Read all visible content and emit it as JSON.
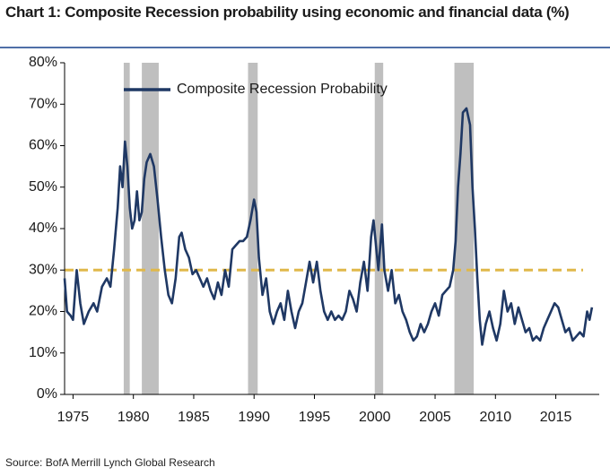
{
  "chart_data": {
    "type": "line",
    "title": "Chart 1: Composite Recession probability using economic and financial data (%)",
    "source": "Source:  BofA Merrill Lynch Global Research",
    "x": [
      1974.3,
      1974.5,
      1974.8,
      1975.0,
      1975.3,
      1975.6,
      1975.9,
      1976.3,
      1976.7,
      1977.0,
      1977.4,
      1977.8,
      1978.1,
      1978.4,
      1978.7,
      1978.9,
      1979.1,
      1979.3,
      1979.5,
      1979.7,
      1979.9,
      1980.1,
      1980.3,
      1980.5,
      1980.7,
      1980.9,
      1981.1,
      1981.4,
      1981.7,
      1982.0,
      1982.3,
      1982.6,
      1982.9,
      1983.2,
      1983.5,
      1983.8,
      1984.0,
      1984.3,
      1984.6,
      1984.9,
      1985.2,
      1985.5,
      1985.8,
      1986.1,
      1986.4,
      1986.7,
      1987.0,
      1987.3,
      1987.6,
      1987.9,
      1988.2,
      1988.5,
      1988.8,
      1989.1,
      1989.4,
      1989.7,
      1990.0,
      1990.2,
      1990.4,
      1990.7,
      1991.0,
      1991.3,
      1991.6,
      1991.9,
      1992.2,
      1992.5,
      1992.8,
      1993.1,
      1993.4,
      1993.7,
      1994.0,
      1994.3,
      1994.6,
      1994.9,
      1995.2,
      1995.5,
      1995.8,
      1996.1,
      1996.4,
      1996.7,
      1997.0,
      1997.3,
      1997.6,
      1997.9,
      1998.2,
      1998.5,
      1998.8,
      1999.1,
      1999.4,
      1999.7,
      1999.9,
      2000.1,
      2000.3,
      2000.6,
      2000.8,
      2001.1,
      2001.4,
      2001.7,
      2002.0,
      2002.3,
      2002.6,
      2002.9,
      2003.2,
      2003.5,
      2003.8,
      2004.1,
      2004.4,
      2004.7,
      2005.0,
      2005.3,
      2005.6,
      2005.9,
      2006.2,
      2006.5,
      2006.7,
      2006.9,
      2007.1,
      2007.3,
      2007.6,
      2007.9,
      2008.1,
      2008.3,
      2008.5,
      2008.7,
      2008.9,
      2009.2,
      2009.5,
      2009.8,
      2010.1,
      2010.4,
      2010.7,
      2011.0,
      2011.3,
      2011.6,
      2011.9,
      2012.2,
      2012.5,
      2012.8,
      2013.1,
      2013.4,
      2013.7,
      2014.0,
      2014.3,
      2014.6,
      2014.9,
      2015.2,
      2015.5,
      2015.8,
      2016.1,
      2016.4,
      2016.7,
      2017.0,
      2017.3,
      2017.6,
      2017.8,
      2018.0
    ],
    "series": [
      {
        "name": "Composite Recession Probability",
        "color": "#1f3864",
        "values": [
          28,
          20,
          19,
          18,
          30,
          22,
          17,
          20,
          22,
          20,
          26,
          28,
          26,
          35,
          45,
          55,
          50,
          61,
          55,
          45,
          40,
          42,
          49,
          42,
          44,
          52,
          56,
          58,
          55,
          47,
          38,
          30,
          24,
          22,
          28,
          38,
          39,
          35,
          33,
          29,
          30,
          28,
          26,
          28,
          25,
          23,
          27,
          24,
          30,
          26,
          35,
          36,
          37,
          37,
          38,
          42,
          47,
          44,
          33,
          24,
          28,
          20,
          17,
          20,
          22,
          18,
          25,
          20,
          16,
          20,
          22,
          27,
          32,
          27,
          32,
          25,
          20,
          18,
          20,
          18,
          19,
          18,
          20,
          25,
          23,
          20,
          27,
          32,
          25,
          38,
          42,
          36,
          30,
          41,
          30,
          25,
          30,
          22,
          24,
          20,
          18,
          15,
          13,
          14,
          17,
          15,
          17,
          20,
          22,
          19,
          24,
          25,
          26,
          30,
          37,
          50,
          58,
          68,
          69,
          65,
          50,
          40,
          28,
          18,
          12,
          17,
          20,
          16,
          13,
          17,
          25,
          20,
          22,
          17,
          21,
          18,
          15,
          16,
          13,
          14,
          13,
          16,
          18,
          20,
          22,
          21,
          18,
          15,
          16,
          13,
          14,
          15,
          14,
          20,
          18,
          21
        ]
      }
    ],
    "recession_periods": [
      [
        1979.2,
        1979.7
      ],
      [
        1980.7,
        1982.1
      ],
      [
        1989.5,
        1990.3
      ],
      [
        2000.0,
        2000.7
      ],
      [
        2006.6,
        2008.2
      ]
    ],
    "threshold": 30,
    "xlim": [
      1974.3,
      2018.6
    ],
    "xticks": [
      1975,
      1980,
      1985,
      1990,
      1995,
      2000,
      2005,
      2010,
      2015
    ],
    "ylim": [
      0,
      80
    ],
    "yticks": [
      {
        "value": 0,
        "label": "0%"
      },
      {
        "value": 10,
        "label": "10%"
      },
      {
        "value": 20,
        "label": "20%"
      },
      {
        "value": 30,
        "label": "30%"
      },
      {
        "value": 40,
        "label": "40%"
      },
      {
        "value": 50,
        "label": "50%"
      },
      {
        "value": 60,
        "label": "60%"
      },
      {
        "value": 70,
        "label": "70%"
      },
      {
        "value": 80,
        "label": "80%"
      }
    ]
  }
}
